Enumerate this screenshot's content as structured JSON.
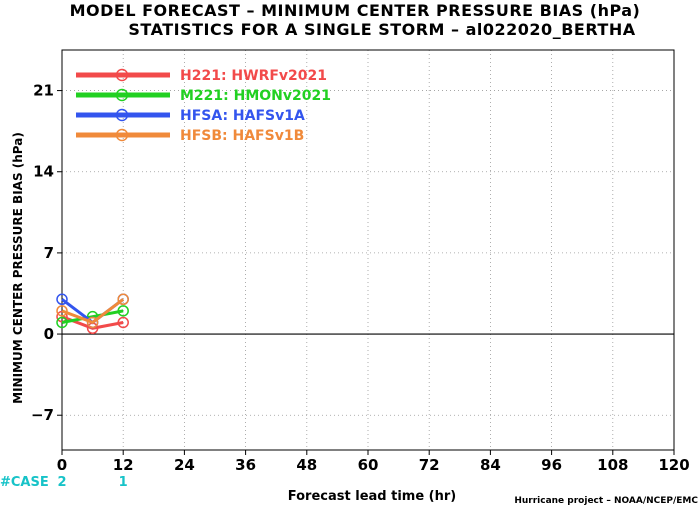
{
  "colors": {
    "HWRF": "#f24a4a",
    "HMON": "#22d022",
    "HAFSA": "#3355ee",
    "HAFSB": "#f08a3a",
    "case": "#17c3c8",
    "grid": "#999999"
  },
  "chart_data": {
    "type": "line",
    "title": "MODEL FORECAST – MINIMUM CENTER PRESSURE BIAS (hPa)",
    "subtitle": "STATISTICS FOR A SINGLE STORM – al022020_BERTHA",
    "xlabel": "Forecast lead time (hr)",
    "ylabel": "MINIMUM CENTER PRESSURE BIAS (hPa)",
    "xlim": [
      0,
      120
    ],
    "ylim": [
      -10,
      24.5
    ],
    "xticks": [
      0,
      12,
      24,
      36,
      48,
      60,
      72,
      84,
      96,
      108,
      120
    ],
    "yticks": [
      -7,
      0,
      7,
      14,
      21
    ],
    "grid": "dotted",
    "legend_position": "top-left",
    "series": [
      {
        "name": "H221: HWRFv2021",
        "color_key": "HWRF",
        "x": [
          0,
          6,
          12
        ],
        "values": [
          1.5,
          0.5,
          1.0
        ]
      },
      {
        "name": "M221: HMONv2021",
        "color_key": "HMON",
        "x": [
          0,
          6,
          12
        ],
        "values": [
          1.0,
          1.5,
          2.0
        ]
      },
      {
        "name": "HFSA: HAFSv1A",
        "color_key": "HAFSA",
        "x": [
          0,
          6,
          12
        ],
        "values": [
          3.0,
          1.0,
          3.0
        ]
      },
      {
        "name": "HFSB: HAFSv1B",
        "color_key": "HAFSB",
        "x": [
          0,
          6,
          12
        ],
        "values": [
          2.0,
          1.0,
          3.0
        ]
      }
    ],
    "cases": {
      "label": "#CASE",
      "x": [
        0,
        12
      ],
      "counts": [
        "2",
        "1"
      ]
    },
    "credit": "Hurricane project – NOAA/NCEP/EMC"
  }
}
